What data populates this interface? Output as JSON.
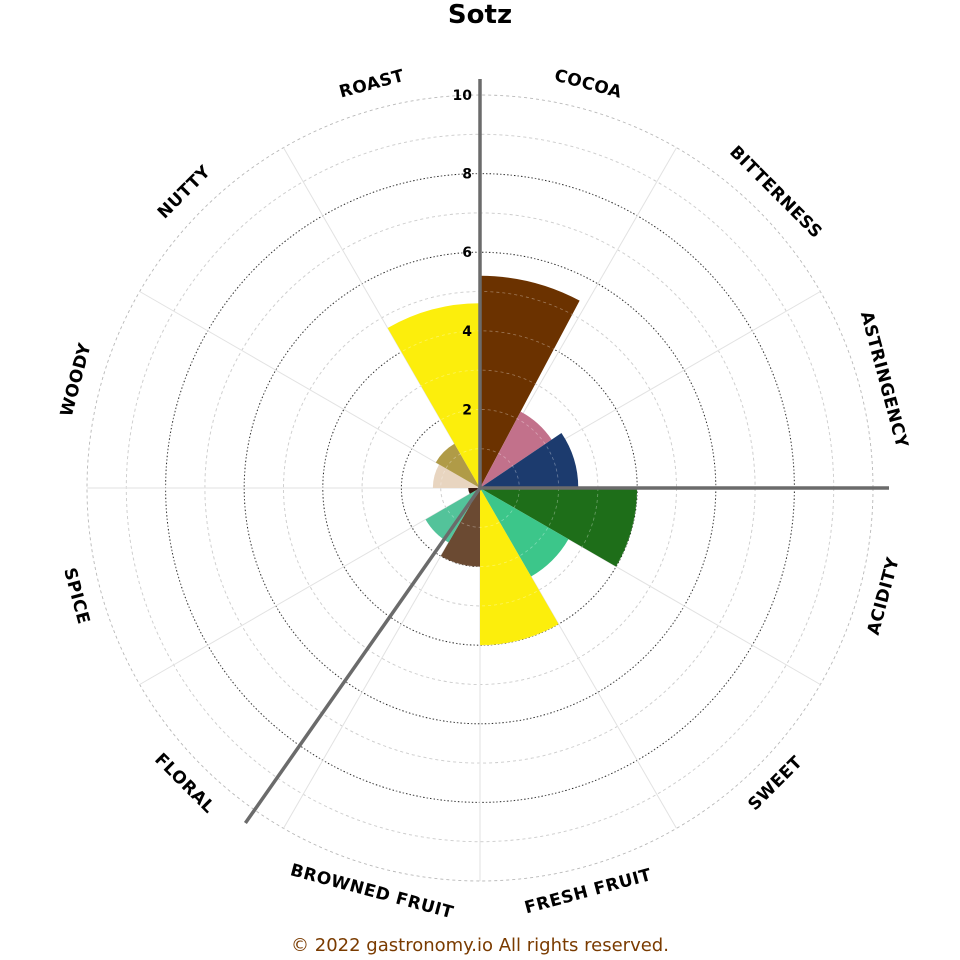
{
  "chart_data": {
    "type": "polar-bar",
    "title": "Sotz",
    "categories": [
      "COCOA",
      "BITTERNESS",
      "ASTRINGENCY",
      "ACIDITY",
      "SWEET",
      "FRESH FRUIT",
      "BROWNED FRUIT",
      "FLORAL",
      "SPICE",
      "WOODY",
      "NUTTY",
      "ROAST"
    ],
    "r_ticks": [
      "2",
      "4",
      "6",
      "8",
      "10"
    ],
    "rlim": [
      0,
      10
    ],
    "grid": true,
    "legend": "none",
    "wedges": [
      {
        "label": "cocoa",
        "value": 5.4,
        "color": "#6b3200",
        "start": 0,
        "end": 28
      },
      {
        "label": "bitterness",
        "value": 2.2,
        "color": "#c2718b",
        "start": 28,
        "end": 56
      },
      {
        "label": "astringency",
        "value": 2.5,
        "color": "#1c3b6e",
        "start": 56,
        "end": 90
      },
      {
        "label": "acidity",
        "value": 4.0,
        "color": "#1e6e19",
        "start": 90,
        "end": 120
      },
      {
        "label": "sweet",
        "value": 0.0,
        "color": "#b8860b",
        "start": 120,
        "end": 150
      },
      {
        "label": "fresh fruit",
        "value": 2.6,
        "color": "#3cc68a",
        "start": 120,
        "end": 150
      },
      {
        "label": "browned fruit",
        "value": 4.0,
        "color": "#fcee0c",
        "start": 150,
        "end": 180
      },
      {
        "label": "floral",
        "value": 2.0,
        "color": "#6b4a32",
        "start": 180,
        "end": 210
      },
      {
        "label": "spice",
        "value": 1.6,
        "color": "#53c39a",
        "start": 210,
        "end": 240
      },
      {
        "label": "woody",
        "value": 0.3,
        "color": "#3a1a10",
        "start": 240,
        "end": 270
      },
      {
        "label": "nutty",
        "value": 1.2,
        "color": "#e8d5c0",
        "start": 270,
        "end": 300
      },
      {
        "label": "roast",
        "value": 1.3,
        "color": "#b09b47",
        "start": 300,
        "end": 330
      },
      {
        "label": "roast-2",
        "value": 4.7,
        "color": "#fcee0c",
        "start": 330,
        "end": 360
      }
    ],
    "spokes": [
      0,
      90,
      215
    ]
  },
  "footer": {
    "copyright": "© 2022 gastronomy.io All rights reserved."
  }
}
